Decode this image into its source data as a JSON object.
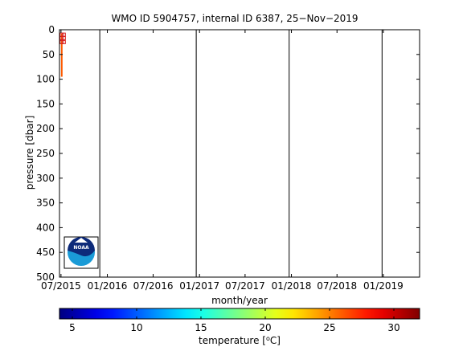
{
  "chart_data": {
    "type": "scatter",
    "title": "WMO ID 5904757, internal ID 6387, 25−Nov−2019",
    "xlabel": "month/year",
    "ylabel": "pressure [dbar]",
    "xlim": [
      "2015-06-25",
      "2019-05-25"
    ],
    "ylim": [
      0,
      500
    ],
    "y_reversed": true,
    "x_ticks": [
      {
        "date": "2015-07-01",
        "label": "07/2015"
      },
      {
        "date": "2016-01-01",
        "label": "01/2016"
      },
      {
        "date": "2016-07-01",
        "label": "07/2016"
      },
      {
        "date": "2017-01-01",
        "label": "01/2017"
      },
      {
        "date": "2017-07-01",
        "label": "07/2017"
      },
      {
        "date": "2018-01-01",
        "label": "01/2018"
      },
      {
        "date": "2018-07-01",
        "label": "07/2018"
      },
      {
        "date": "2019-01-01",
        "label": "01/2019"
      }
    ],
    "y_ticks": [
      0,
      50,
      100,
      150,
      200,
      250,
      300,
      350,
      400,
      450,
      500
    ],
    "year_lines": [
      "2015-12-02",
      "2016-12-19",
      "2017-12-23",
      "2018-12-27"
    ],
    "profiles": [
      {
        "date": "2015-07-04",
        "p_top": 8,
        "p_bottom": 95,
        "temperature": 26
      }
    ],
    "flagged_points": [
      {
        "date": "2015-07-04",
        "pressure": 10
      },
      {
        "date": "2015-07-12",
        "pressure": 10
      },
      {
        "date": "2015-07-04",
        "pressure": 17
      },
      {
        "date": "2015-07-12",
        "pressure": 17
      },
      {
        "date": "2015-07-04",
        "pressure": 25
      },
      {
        "date": "2015-07-12",
        "pressure": 25
      }
    ],
    "colorbar": {
      "label": "temperature [°C]",
      "min": 4,
      "max": 32,
      "ticks": [
        5,
        10,
        15,
        20,
        25,
        30
      ],
      "colormap": "jet"
    },
    "grid": false,
    "logo": "noaa-logo"
  }
}
